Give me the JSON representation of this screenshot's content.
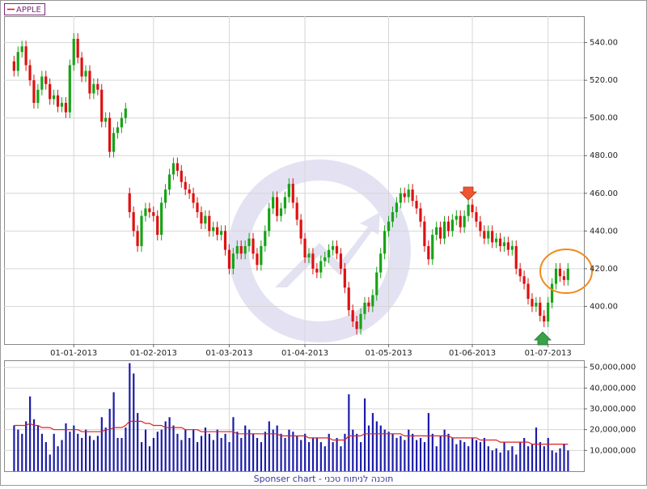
{
  "chart_data": [
    {
      "type": "candlestick",
      "name": "APPLE",
      "up_color": "#17a317",
      "down_color": "#dd1111",
      "grid": true,
      "open": [
        530,
        525,
        535,
        538,
        528,
        520,
        508,
        515,
        522,
        518,
        510,
        512,
        506,
        508,
        503,
        528,
        542,
        532,
        522,
        525,
        513,
        518,
        515,
        498,
        500,
        482,
        492,
        495,
        500,
        460,
        450,
        440,
        432,
        448,
        452,
        450,
        448,
        438,
        455,
        462,
        470,
        476,
        472,
        466,
        462,
        460,
        455,
        450,
        444,
        448,
        440,
        442,
        438,
        440,
        430,
        420,
        428,
        432,
        428,
        432,
        436,
        428,
        422,
        432,
        440,
        452,
        458,
        448,
        452,
        458,
        465,
        455,
        446,
        436,
        426,
        428,
        420,
        418,
        424,
        426,
        430,
        432,
        428,
        420,
        410,
        398,
        392,
        388,
        396,
        402,
        400,
        406,
        418,
        428,
        440,
        445,
        450,
        455,
        460,
        458,
        462,
        456,
        452,
        445,
        432,
        425,
        438,
        442,
        436,
        445,
        440,
        446,
        448,
        442,
        448,
        454,
        450,
        445,
        440,
        436,
        440,
        434,
        436,
        432,
        434,
        430,
        432,
        420,
        416,
        412,
        404,
        400,
        402,
        395,
        392,
        402,
        412,
        420,
        416,
        414
      ],
      "high": [
        533,
        538,
        541,
        541,
        531,
        523,
        518,
        525,
        525,
        521,
        515,
        515,
        511,
        511,
        531,
        545,
        545,
        535,
        528,
        528,
        521,
        521,
        518,
        503,
        503,
        495,
        498,
        503,
        508,
        463,
        453,
        443,
        451,
        455,
        455,
        453,
        451,
        458,
        465,
        473,
        479,
        479,
        475,
        469,
        465,
        463,
        458,
        453,
        451,
        451,
        445,
        445,
        443,
        443,
        433,
        431,
        435,
        435,
        435,
        439,
        439,
        431,
        435,
        443,
        455,
        461,
        461,
        455,
        461,
        468,
        468,
        458,
        449,
        439,
        431,
        431,
        423,
        427,
        429,
        433,
        435,
        435,
        431,
        423,
        413,
        401,
        395,
        399,
        405,
        405,
        409,
        421,
        431,
        443,
        448,
        453,
        458,
        463,
        463,
        465,
        465,
        459,
        455,
        448,
        435,
        441,
        445,
        445,
        448,
        448,
        449,
        451,
        451,
        451,
        457,
        457,
        453,
        448,
        443,
        443,
        443,
        439,
        439,
        437,
        437,
        435,
        435,
        423,
        419,
        415,
        407,
        405,
        405,
        398,
        405,
        415,
        423,
        423,
        419,
        423
      ],
      "low": [
        522,
        522,
        532,
        525,
        517,
        505,
        505,
        512,
        515,
        507,
        507,
        503,
        503,
        500,
        500,
        525,
        529,
        519,
        519,
        510,
        510,
        512,
        495,
        495,
        479,
        479,
        489,
        492,
        497,
        447,
        437,
        429,
        429,
        445,
        447,
        445,
        435,
        435,
        452,
        459,
        467,
        469,
        463,
        459,
        457,
        452,
        447,
        441,
        441,
        437,
        437,
        435,
        435,
        427,
        417,
        417,
        425,
        425,
        425,
        429,
        425,
        419,
        419,
        429,
        437,
        449,
        445,
        445,
        449,
        455,
        452,
        443,
        433,
        423,
        423,
        417,
        415,
        415,
        421,
        423,
        427,
        425,
        417,
        407,
        395,
        389,
        385,
        385,
        393,
        397,
        397,
        403,
        415,
        425,
        437,
        442,
        447,
        452,
        455,
        455,
        453,
        449,
        442,
        429,
        422,
        422,
        435,
        433,
        433,
        437,
        437,
        443,
        439,
        439,
        445,
        447,
        442,
        437,
        433,
        433,
        431,
        431,
        429,
        429,
        427,
        427,
        417,
        413,
        409,
        401,
        397,
        397,
        392,
        389,
        389,
        399,
        409,
        413,
        411,
        411
      ],
      "close": [
        525,
        535,
        538,
        528,
        520,
        508,
        515,
        522,
        518,
        510,
        512,
        506,
        508,
        503,
        528,
        542,
        532,
        522,
        525,
        513,
        518,
        515,
        498,
        500,
        482,
        492,
        495,
        500,
        505,
        450,
        440,
        432,
        448,
        452,
        450,
        448,
        438,
        455,
        462,
        470,
        476,
        472,
        466,
        462,
        460,
        455,
        450,
        444,
        448,
        440,
        442,
        438,
        440,
        430,
        420,
        428,
        432,
        428,
        432,
        436,
        428,
        422,
        432,
        440,
        452,
        458,
        448,
        452,
        458,
        465,
        455,
        446,
        436,
        426,
        428,
        420,
        418,
        424,
        426,
        430,
        432,
        428,
        420,
        410,
        398,
        392,
        388,
        396,
        402,
        400,
        406,
        418,
        428,
        440,
        445,
        450,
        455,
        460,
        458,
        462,
        456,
        452,
        445,
        432,
        425,
        438,
        442,
        436,
        445,
        440,
        446,
        448,
        442,
        448,
        454,
        450,
        445,
        440,
        436,
        440,
        434,
        436,
        432,
        434,
        430,
        432,
        420,
        416,
        412,
        404,
        400,
        402,
        395,
        392,
        402,
        412,
        420,
        416,
        414,
        420
      ],
      "xlim": [
        -2.5,
        143
      ],
      "xticks": [
        {
          "value": 15,
          "label": "01-01-2013"
        },
        {
          "value": 35,
          "label": "01-02-2013"
        },
        {
          "value": 54,
          "label": "01-03-2013"
        },
        {
          "value": 73,
          "label": "01-04-2013"
        },
        {
          "value": 94,
          "label": "01-05-2013"
        },
        {
          "value": 115,
          "label": "01-06-2013"
        },
        {
          "value": 134,
          "label": "01-07-2013"
        }
      ],
      "ylim": [
        380,
        554
      ],
      "yticks": [
        {
          "value": 400,
          "label": "400.00"
        },
        {
          "value": 420,
          "label": "420.00"
        },
        {
          "value": 440,
          "label": "440.00"
        },
        {
          "value": 460,
          "label": "460.00"
        },
        {
          "value": 480,
          "label": "480.00"
        },
        {
          "value": 500,
          "label": "500.00"
        },
        {
          "value": 520,
          "label": "520.00"
        },
        {
          "value": 540,
          "label": "540.00"
        }
      ]
    },
    {
      "type": "bar",
      "color": "#1c1ca8",
      "grid": true,
      "values": [
        22000000.0,
        20000000.0,
        18000000.0,
        24000000.0,
        36000000.0,
        25000000.0,
        22000000.0,
        18000000.0,
        14000000.0,
        8000000.0,
        18000000.0,
        12000000.0,
        15000000.0,
        23000000.0,
        19000000.0,
        22000000.0,
        18000000.0,
        16000000.0,
        20000000.0,
        17000000.0,
        15000000.0,
        17000000.0,
        26000000.0,
        21000000.0,
        30000000.0,
        38000000.0,
        16000000.0,
        16000000.0,
        21000000.0,
        52000000.0,
        47000000.0,
        28000000.0,
        14000000.0,
        20000000.0,
        12000000.0,
        16000000.0,
        19000000.0,
        20000000.0,
        24000000.0,
        26000000.0,
        22000000.0,
        18000000.0,
        15000000.0,
        20000000.0,
        16000000.0,
        20000000.0,
        14000000.0,
        17000000.0,
        21000000.0,
        18000000.0,
        15000000.0,
        20000000.0,
        16000000.0,
        18000000.0,
        14000000.0,
        26000000.0,
        19000000.0,
        16000000.0,
        22000000.0,
        20000000.0,
        18000000.0,
        16000000.0,
        14000000.0,
        19000000.0,
        24000000.0,
        20000000.0,
        22000000.0,
        18000000.0,
        16000000.0,
        20000000.0,
        19000000.0,
        17000000.0,
        15000000.0,
        18000000.0,
        14000000.0,
        16000000.0,
        16000000.0,
        14000000.0,
        12000000.0,
        18000000.0,
        14000000.0,
        16000000.0,
        12000000.0,
        18000000.0,
        37000000.0,
        20000000.0,
        18000000.0,
        14000000.0,
        35000000.0,
        22000000.0,
        28000000.0,
        24000000.0,
        22000000.0,
        20000000.0,
        19000000.0,
        18000000.0,
        16000000.0,
        17000000.0,
        15000000.0,
        20000000.0,
        18000000.0,
        15000000.0,
        16000000.0,
        14000000.0,
        28000000.0,
        18000000.0,
        12000000.0,
        17000000.0,
        20000000.0,
        18000000.0,
        16000000.0,
        13000000.0,
        15000000.0,
        14000000.0,
        12000000.0,
        16000000.0,
        15000000.0,
        14000000.0,
        16000000.0,
        12000000.0,
        10000000.0,
        11000000.0,
        9000000.0,
        14000000.0,
        10000000.0,
        12000000.0,
        8000000.0,
        14000000.0,
        16000000.0,
        12000000.0,
        13000000.0,
        21000000.0,
        14000000.0,
        12000000.0,
        16000000.0,
        10000000.0,
        9000000.0,
        11000000.0,
        13000000.0,
        10000000.0
      ],
      "line": {
        "color": "#e02020",
        "values": [
          22000000.0,
          22000000.0,
          22000000.0,
          22000000.0,
          23000000.0,
          22000000.0,
          22000000.0,
          21000000.0,
          21000000.0,
          21000000.0,
          20000000.0,
          20000000.0,
          20000000.0,
          20000000.0,
          20000000.0,
          20000000.0,
          20000000.0,
          19000000.0,
          19000000.0,
          19000000.0,
          19000000.0,
          19000000.0,
          19000000.0,
          20000000.0,
          20000000.0,
          21000000.0,
          21000000.0,
          21000000.0,
          22000000.0,
          24000000.0,
          24000000.0,
          24000000.0,
          24000000.0,
          23000000.0,
          23000000.0,
          22000000.0,
          22000000.0,
          22000000.0,
          21000000.0,
          21000000.0,
          21000000.0,
          21000000.0,
          21000000.0,
          20000000.0,
          20000000.0,
          20000000.0,
          20000000.0,
          19000000.0,
          19000000.0,
          19000000.0,
          19000000.0,
          19000000.0,
          19000000.0,
          19000000.0,
          19000000.0,
          19000000.0,
          18000000.0,
          18000000.0,
          18000000.0,
          18000000.0,
          18000000.0,
          18000000.0,
          18000000.0,
          18000000.0,
          18000000.0,
          18000000.0,
          18000000.0,
          17000000.0,
          17000000.0,
          17000000.0,
          17000000.0,
          17000000.0,
          17000000.0,
          17000000.0,
          16000000.0,
          16000000.0,
          16000000.0,
          16000000.0,
          16000000.0,
          16000000.0,
          15000000.0,
          15000000.0,
          15000000.0,
          15000000.0,
          17000000.0,
          17000000.0,
          17000000.0,
          17000000.0,
          18000000.0,
          18000000.0,
          18000000.0,
          18000000.0,
          18000000.0,
          18000000.0,
          18000000.0,
          18000000.0,
          18000000.0,
          18000000.0,
          17000000.0,
          17000000.0,
          17000000.0,
          17000000.0,
          17000000.0,
          17000000.0,
          17000000.0,
          17000000.0,
          17000000.0,
          17000000.0,
          17000000.0,
          17000000.0,
          16000000.0,
          16000000.0,
          16000000.0,
          16000000.0,
          16000000.0,
          16000000.0,
          16000000.0,
          15000000.0,
          15000000.0,
          15000000.0,
          15000000.0,
          15000000.0,
          14000000.0,
          14000000.0,
          14000000.0,
          14000000.0,
          14000000.0,
          14000000.0,
          14000000.0,
          14000000.0,
          13000000.0,
          13000000.0,
          13000000.0,
          13000000.0,
          13000000.0,
          13000000.0,
          13000000.0,
          13000000.0,
          13000000.0,
          13000000.0
        ]
      },
      "ylim": [
        0,
        53000000
      ],
      "yticks": [
        {
          "value": 10000000,
          "label": "10,000,000"
        },
        {
          "value": 20000000,
          "label": "20,000,000"
        },
        {
          "value": 30000000,
          "label": "30,000,000"
        },
        {
          "value": 40000000,
          "label": "40,000,000"
        },
        {
          "value": 50000000,
          "label": "50,000,000"
        }
      ]
    }
  ],
  "footer": "Sponser chart - תוכנה לניתוח טכני"
}
